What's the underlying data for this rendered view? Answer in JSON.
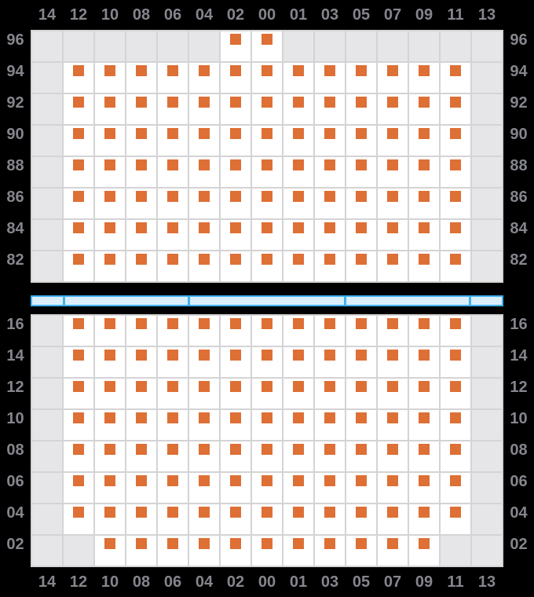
{
  "palette": {
    "background": "#000000",
    "axis_label": "#85858d",
    "cell_empty": "#e6e6e8",
    "cell_marked": "#ffffff",
    "gridline": "#d4d4d6",
    "marker": "#de6f35",
    "scrollbar_border": "#41b2ef",
    "scrollbar_fill": "#ddeefb"
  },
  "columns": [
    "14",
    "12",
    "10",
    "08",
    "06",
    "04",
    "02",
    "00",
    "01",
    "03",
    "05",
    "07",
    "09",
    "11",
    "13"
  ],
  "upper_panel": {
    "rows": [
      {
        "label": "96",
        "cells": [
          0,
          0,
          0,
          0,
          0,
          0,
          1,
          1,
          0,
          0,
          0,
          0,
          0,
          0,
          0
        ]
      },
      {
        "label": "94",
        "cells": [
          0,
          1,
          1,
          1,
          1,
          1,
          1,
          1,
          1,
          1,
          1,
          1,
          1,
          1,
          0
        ]
      },
      {
        "label": "92",
        "cells": [
          0,
          1,
          1,
          1,
          1,
          1,
          1,
          1,
          1,
          1,
          1,
          1,
          1,
          1,
          0
        ]
      },
      {
        "label": "90",
        "cells": [
          0,
          1,
          1,
          1,
          1,
          1,
          1,
          1,
          1,
          1,
          1,
          1,
          1,
          1,
          0
        ]
      },
      {
        "label": "88",
        "cells": [
          0,
          1,
          1,
          1,
          1,
          1,
          1,
          1,
          1,
          1,
          1,
          1,
          1,
          1,
          0
        ]
      },
      {
        "label": "86",
        "cells": [
          0,
          1,
          1,
          1,
          1,
          1,
          1,
          1,
          1,
          1,
          1,
          1,
          1,
          1,
          0
        ]
      },
      {
        "label": "84",
        "cells": [
          0,
          1,
          1,
          1,
          1,
          1,
          1,
          1,
          1,
          1,
          1,
          1,
          1,
          1,
          0
        ]
      },
      {
        "label": "82",
        "cells": [
          0,
          1,
          1,
          1,
          1,
          1,
          1,
          1,
          1,
          1,
          1,
          1,
          1,
          1,
          0
        ]
      }
    ]
  },
  "scrollbar": {
    "segments_in_columns": [
      1,
      4,
      5,
      4,
      1
    ]
  },
  "lower_panel": {
    "rows": [
      {
        "label": "16",
        "cells": [
          0,
          1,
          1,
          1,
          1,
          1,
          1,
          1,
          1,
          1,
          1,
          1,
          1,
          1,
          0
        ]
      },
      {
        "label": "14",
        "cells": [
          0,
          1,
          1,
          1,
          1,
          1,
          1,
          1,
          1,
          1,
          1,
          1,
          1,
          1,
          0
        ]
      },
      {
        "label": "12",
        "cells": [
          0,
          1,
          1,
          1,
          1,
          1,
          1,
          1,
          1,
          1,
          1,
          1,
          1,
          1,
          0
        ]
      },
      {
        "label": "10",
        "cells": [
          0,
          1,
          1,
          1,
          1,
          1,
          1,
          1,
          1,
          1,
          1,
          1,
          1,
          1,
          0
        ]
      },
      {
        "label": "08",
        "cells": [
          0,
          1,
          1,
          1,
          1,
          1,
          1,
          1,
          1,
          1,
          1,
          1,
          1,
          1,
          0
        ]
      },
      {
        "label": "06",
        "cells": [
          0,
          1,
          1,
          1,
          1,
          1,
          1,
          1,
          1,
          1,
          1,
          1,
          1,
          1,
          0
        ]
      },
      {
        "label": "04",
        "cells": [
          0,
          1,
          1,
          1,
          1,
          1,
          1,
          1,
          1,
          1,
          1,
          1,
          1,
          1,
          0
        ]
      },
      {
        "label": "02",
        "cells": [
          0,
          0,
          1,
          1,
          1,
          1,
          1,
          1,
          1,
          1,
          1,
          1,
          1,
          0,
          0
        ]
      }
    ]
  }
}
